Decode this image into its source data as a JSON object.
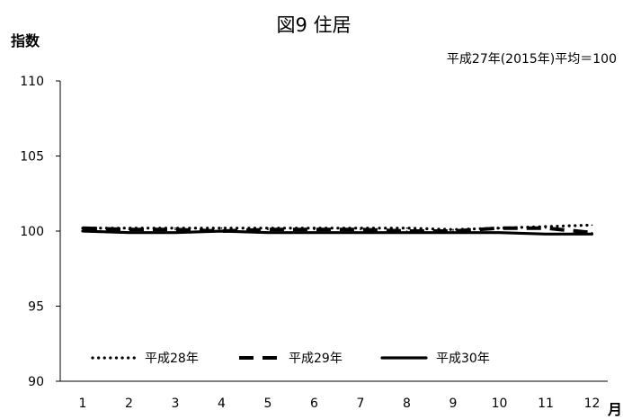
{
  "chart_data": {
    "type": "line",
    "title": "図9  住居",
    "subtitle": "平成27年(2015年)平均＝100",
    "ylabel": "指数",
    "xlabel": "月",
    "ylim": [
      90,
      110
    ],
    "yticks": [
      90,
      95,
      100,
      105,
      110
    ],
    "categories": [
      "1",
      "2",
      "3",
      "4",
      "5",
      "6",
      "7",
      "8",
      "9",
      "10",
      "11",
      "12"
    ],
    "legend_position": "bottom-left",
    "grid": false,
    "series": [
      {
        "name": "平成28年",
        "style": "dotted",
        "color": "#000000",
        "values": [
          100.2,
          100.2,
          100.2,
          100.2,
          100.2,
          100.2,
          100.2,
          100.2,
          100.1,
          100.2,
          100.3,
          100.4
        ]
      },
      {
        "name": "平成29年",
        "style": "dashed",
        "color": "#000000",
        "values": [
          100.2,
          100.1,
          100.1,
          100.0,
          100.1,
          100.1,
          100.1,
          100.0,
          100.0,
          100.2,
          100.2,
          99.9
        ]
      },
      {
        "name": "平成30年",
        "style": "solid",
        "color": "#000000",
        "values": [
          100.0,
          99.9,
          99.9,
          100.0,
          99.9,
          99.9,
          99.9,
          99.9,
          99.9,
          99.9,
          99.8,
          99.8
        ]
      }
    ]
  }
}
